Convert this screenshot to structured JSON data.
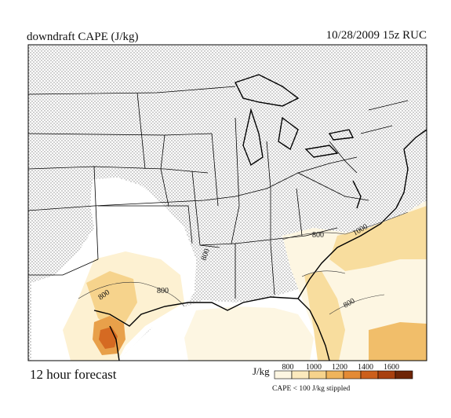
{
  "header": {
    "left_title": "downdraft CAPE (J/kg)",
    "right_title": "10/28/2009  15z  RUC"
  },
  "footer": {
    "forecast_label": "12 hour forecast",
    "units_label": "J/kg",
    "stipple_note": "CAPE < 100 J/kg stippled"
  },
  "colorbar": {
    "ticks": [
      "800",
      "1000",
      "1200",
      "1400",
      "1600"
    ],
    "colors": [
      "#fdf6e2",
      "#fbe9bd",
      "#f6d38c",
      "#efb45c",
      "#e38a35",
      "#cc5f1c",
      "#a8400f",
      "#6e2507"
    ]
  },
  "map": {
    "contour_labels": [
      "800",
      "800",
      "800",
      "800",
      "1000",
      "800"
    ],
    "stipple_color": "#9a9a9a",
    "border_color": "#000000"
  }
}
